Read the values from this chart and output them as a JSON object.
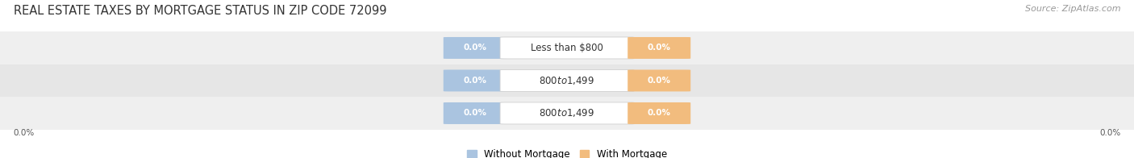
{
  "title": "REAL ESTATE TAXES BY MORTGAGE STATUS IN ZIP CODE 72099",
  "source": "Source: ZipAtlas.com",
  "categories": [
    "Less than $800",
    "$800 to $1,499",
    "$800 to $1,499"
  ],
  "without_mortgage": [
    0.0,
    0.0,
    0.0
  ],
  "with_mortgage": [
    0.0,
    0.0,
    0.0
  ],
  "without_mortgage_color": "#aac4e0",
  "with_mortgage_color": "#f2bc7e",
  "row_bg_colors": [
    "#efefef",
    "#e6e6e6",
    "#efefef"
  ],
  "title_fontsize": 10.5,
  "source_fontsize": 8,
  "value_fontsize": 7.5,
  "category_fontsize": 8.5,
  "legend_fontsize": 8.5,
  "figsize": [
    14.06,
    1.96
  ],
  "dpi": 100
}
